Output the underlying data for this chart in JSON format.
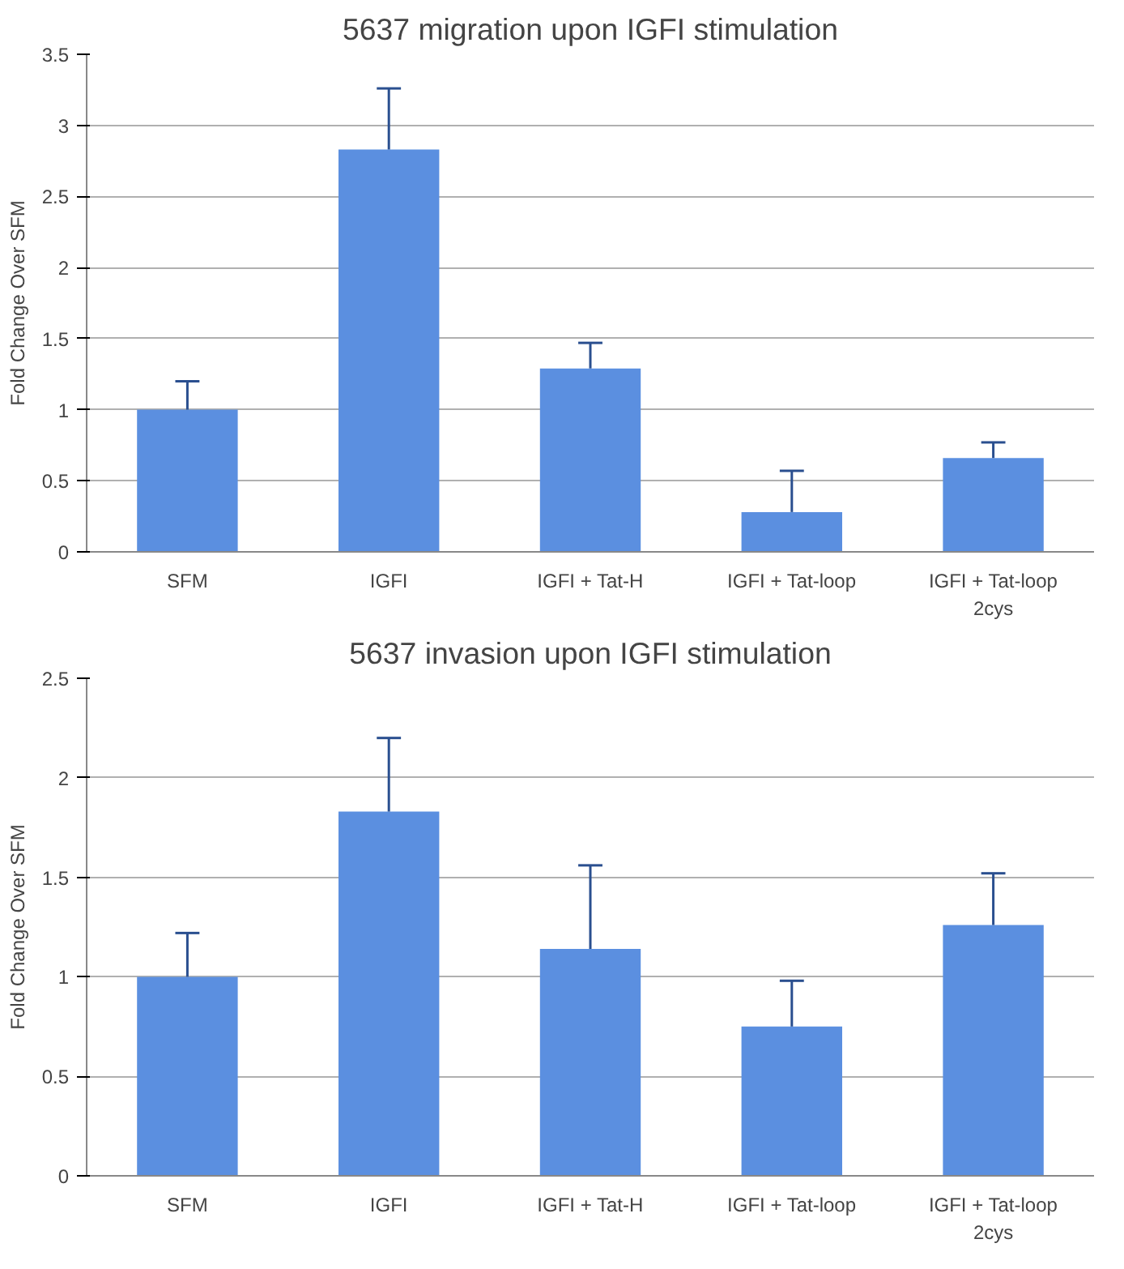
{
  "chart_data": [
    {
      "type": "bar",
      "title": "5637 migration upon IGFI stimulation",
      "ylabel": "Fold Change Over SFM",
      "categories": [
        "SFM",
        "IGFI",
        "IGFI + Tat-H",
        "IGFI + Tat-loop",
        "IGFI + Tat-loop 2cys"
      ],
      "values": [
        1.0,
        2.83,
        1.29,
        0.28,
        0.66
      ],
      "color": "#5b8fe0",
      "errors": [
        [
          1.0,
          1.2
        ],
        [
          2.83,
          3.26
        ],
        [
          1.29,
          1.47
        ],
        [
          0.28,
          0.57
        ],
        [
          0.66,
          0.77
        ]
      ],
      "ylim": [
        0,
        3.5
      ],
      "yticks": [
        0,
        0.5,
        1,
        1.5,
        2,
        2.5,
        3,
        3.5
      ],
      "grid": "y"
    },
    {
      "type": "bar",
      "title": "5637 invasion upon IGFI stimulation",
      "ylabel": "Fold Change Over SFM",
      "categories": [
        "SFM",
        "IGFI",
        "IGFI + Tat-H",
        "IGFI + Tat-loop",
        "IGFI + Tat-loop 2cys"
      ],
      "values": [
        1.0,
        1.83,
        1.14,
        0.75,
        1.26
      ],
      "color": "#5b8fe0",
      "errors": [
        [
          1.0,
          1.22
        ],
        [
          1.83,
          2.2
        ],
        [
          1.14,
          1.56
        ],
        [
          0.75,
          0.98
        ],
        [
          1.26,
          1.52
        ]
      ],
      "ylim": [
        0,
        2.5
      ],
      "yticks": [
        0,
        0.5,
        1,
        1.5,
        2,
        2.5
      ],
      "grid": "y"
    }
  ]
}
